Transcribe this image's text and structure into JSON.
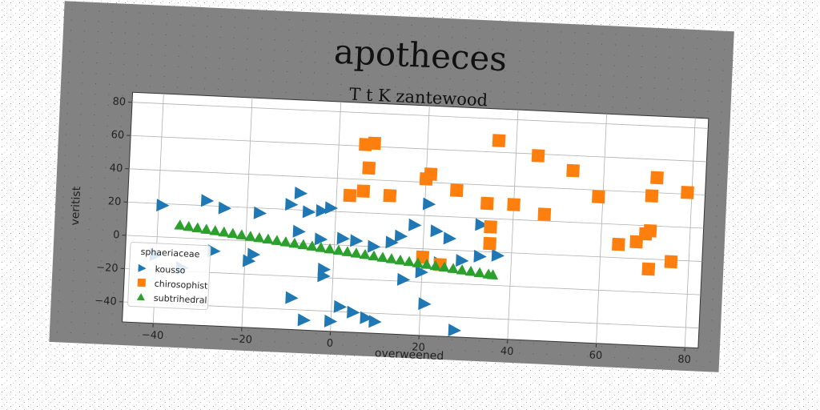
{
  "chart_data": {
    "type": "scatter",
    "title": "apotheces",
    "subtitle": "T t K zantewood",
    "xlabel": "overweened",
    "ylabel": "veritist",
    "xlim": [
      -47,
      83
    ],
    "ylim": [
      -52,
      86
    ],
    "xticks": [
      -40,
      -20,
      0,
      20,
      40,
      60,
      80
    ],
    "yticks": [
      -40,
      -20,
      0,
      20,
      40,
      60,
      80
    ],
    "grid": true,
    "legend": {
      "title": "sphaeriaceae",
      "placement": "lower-left"
    },
    "series": [
      {
        "name": "kousso",
        "marker": "triangle-right",
        "color": "#1f77b4",
        "points": [
          [
            -39,
            19
          ],
          [
            -29,
            23
          ],
          [
            -25,
            19
          ],
          [
            -17,
            17
          ],
          [
            -10,
            23
          ],
          [
            -8,
            30
          ],
          [
            -6,
            19
          ],
          [
            -3,
            20
          ],
          [
            -1,
            22
          ],
          [
            -8,
            7
          ],
          [
            -3,
            3
          ],
          [
            2,
            4
          ],
          [
            5,
            3
          ],
          [
            9,
            0
          ],
          [
            13,
            3
          ],
          [
            15,
            7
          ],
          [
            18,
            14
          ],
          [
            23,
            11
          ],
          [
            26,
            7
          ],
          [
            21,
            27
          ],
          [
            33,
            16
          ],
          [
            37,
            -2
          ],
          [
            33,
            -3
          ],
          [
            29,
            -6
          ],
          [
            24,
            -8
          ],
          [
            20,
            -14
          ],
          [
            16,
            -19
          ],
          [
            -40,
            -11
          ],
          [
            -34,
            -18
          ],
          [
            -27,
            -7
          ],
          [
            -18,
            -8
          ],
          [
            -19,
            -12
          ],
          [
            -2,
            -15
          ],
          [
            -2,
            -19
          ],
          [
            -9,
            -33
          ],
          [
            2,
            -37
          ],
          [
            5,
            -40
          ],
          [
            8,
            -43
          ],
          [
            10,
            -45
          ],
          [
            -6,
            -46
          ],
          [
            0,
            -46
          ],
          [
            21,
            -33
          ],
          [
            28,
            -48
          ]
        ]
      },
      {
        "name": "chirosophist",
        "marker": "square",
        "color": "#ff7f0e",
        "points": [
          [
            6,
            61
          ],
          [
            8,
            62
          ],
          [
            7,
            47
          ],
          [
            6,
            33
          ],
          [
            3,
            30
          ],
          [
            12,
            31
          ],
          [
            20,
            42
          ],
          [
            21,
            45
          ],
          [
            27,
            36
          ],
          [
            34,
            29
          ],
          [
            35,
            15
          ],
          [
            35,
            5
          ],
          [
            40,
            29
          ],
          [
            47,
            24
          ],
          [
            45,
            59
          ],
          [
            36,
            67
          ],
          [
            53,
            51
          ],
          [
            59,
            36
          ],
          [
            64,
            8
          ],
          [
            68,
            10
          ],
          [
            71,
            17
          ],
          [
            70,
            15
          ],
          [
            71,
            38
          ],
          [
            72,
            49
          ],
          [
            79,
            41
          ],
          [
            76,
            -1
          ],
          [
            71,
            -6
          ],
          [
            20,
            -5
          ],
          [
            24,
            -9
          ]
        ]
      },
      {
        "name": "subtrihedral",
        "marker": "triangle-up",
        "color": "#2ca02c",
        "points": [
          [
            -35,
            7.6
          ],
          [
            -33,
            7.0
          ],
          [
            -31,
            6.4
          ],
          [
            -29,
            5.8
          ],
          [
            -27,
            5.2
          ],
          [
            -25,
            4.6
          ],
          [
            -23,
            4.0
          ],
          [
            -21,
            3.4
          ],
          [
            -19,
            2.8
          ],
          [
            -17,
            2.2
          ],
          [
            -15,
            1.6
          ],
          [
            -13,
            1.0
          ],
          [
            -11,
            0.4
          ],
          [
            -9,
            -0.2
          ],
          [
            -7,
            -0.8
          ],
          [
            -5,
            -1.4
          ],
          [
            -3,
            -2.0
          ],
          [
            -1,
            -2.6
          ],
          [
            1,
            -3.2
          ],
          [
            3,
            -3.8
          ],
          [
            5,
            -4.4
          ],
          [
            7,
            -5.0
          ],
          [
            9,
            -5.6
          ],
          [
            11,
            -6.2
          ],
          [
            13,
            -6.8
          ],
          [
            15,
            -7.4
          ],
          [
            17,
            -8.0
          ],
          [
            19,
            -8.6
          ],
          [
            21,
            -9.2
          ],
          [
            23,
            -9.8
          ],
          [
            25,
            -10.4
          ],
          [
            27,
            -11.0
          ],
          [
            29,
            -11.6
          ],
          [
            31,
            -12.2
          ],
          [
            33,
            -12.8
          ],
          [
            35,
            -13.4
          ],
          [
            36,
            -13.7
          ]
        ]
      }
    ]
  }
}
